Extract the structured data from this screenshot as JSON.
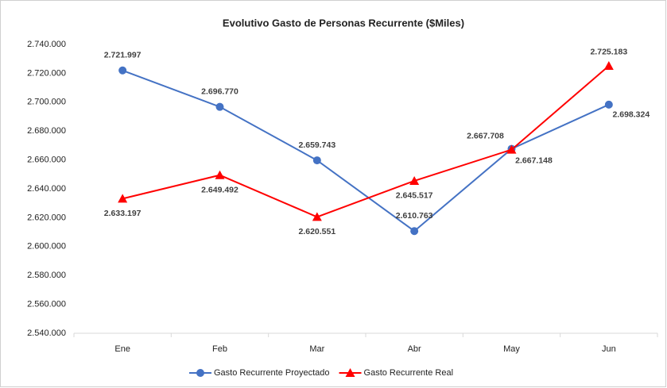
{
  "chart_data": {
    "type": "line",
    "title": "Evolutivo Gasto de Personas Recurrente ($Miles)",
    "categories": [
      "Ene",
      "Feb",
      "Mar",
      "Abr",
      "May",
      "Jun"
    ],
    "series": [
      {
        "name": "Gasto Recurrente Proyectado",
        "color": "#4472c4",
        "marker": "circle",
        "values": [
          2721997,
          2696770,
          2659743,
          2610763,
          2667708,
          2698324
        ],
        "value_labels": [
          "2.721.997",
          "2.696.770",
          "2.659.743",
          "2.610.763",
          "2.667.708",
          "2.698.324"
        ]
      },
      {
        "name": "Gasto Recurrente Real",
        "color": "#ff0000",
        "marker": "triangle",
        "values": [
          2633197,
          2649492,
          2620551,
          2645517,
          2667148,
          2725183
        ],
        "value_labels": [
          "2.633.197",
          "2.649.492",
          "2.620.551",
          "2.645.517",
          "2.667.148",
          "2.725.183"
        ]
      }
    ],
    "ylim": [
      2540000,
      2740000
    ],
    "yticks": [
      {
        "value": 2540000,
        "label": "2.540.000"
      },
      {
        "value": 2560000,
        "label": "2.560.000"
      },
      {
        "value": 2580000,
        "label": "2.580.000"
      },
      {
        "value": 2600000,
        "label": "2.600.000"
      },
      {
        "value": 2620000,
        "label": "2.620.000"
      },
      {
        "value": 2640000,
        "label": "2.640.000"
      },
      {
        "value": 2660000,
        "label": "2.660.000"
      },
      {
        "value": 2680000,
        "label": "2.680.000"
      },
      {
        "value": 2700000,
        "label": "2.700.000"
      },
      {
        "value": 2720000,
        "label": "2.720.000"
      },
      {
        "value": 2740000,
        "label": "2.740.000"
      }
    ],
    "grid": false,
    "legend": "bottom"
  }
}
